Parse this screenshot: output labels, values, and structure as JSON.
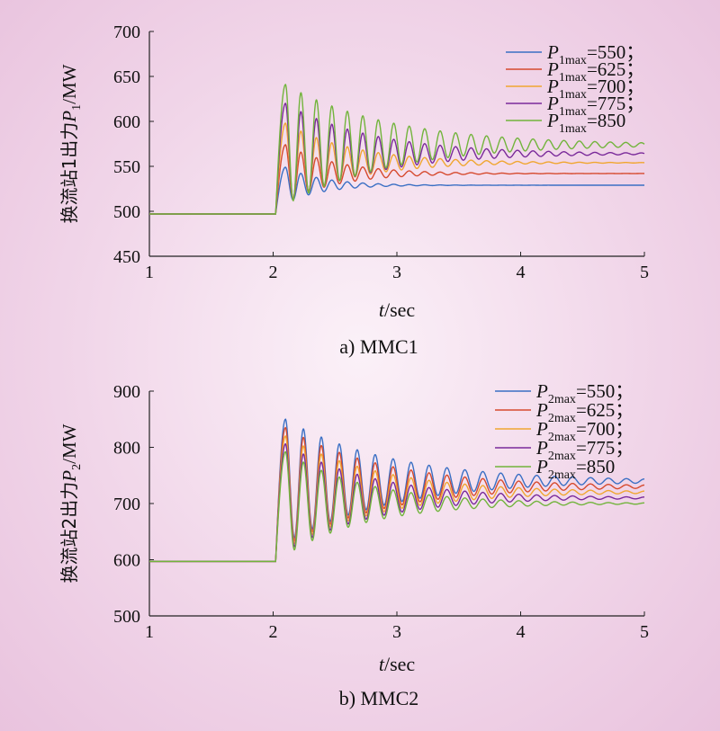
{
  "chart_data": [
    {
      "type": "line",
      "caption": "a) MMC1",
      "xlabel_var": "t",
      "xlabel_unit": "/sec",
      "ylabel_cjk": "换流站1出力",
      "ylabel_var": "P",
      "ylabel_sub": "1",
      "ylabel_unit": "/MW",
      "xlim": [
        1,
        5
      ],
      "ylim": [
        450,
        700
      ],
      "xticks": [
        "1",
        "2",
        "3",
        "4",
        "5"
      ],
      "yticks": [
        "450",
        "500",
        "550",
        "600",
        "650",
        "700"
      ],
      "legend_position": "top-right",
      "grid": false,
      "series": [
        {
          "name": "P1max=550；",
          "var": "P",
          "sub": "1max",
          "tail": "=550；",
          "color": "#3a6fc4",
          "initial": 497,
          "final": 529,
          "peak": 549,
          "dip": 515,
          "period": 0.125,
          "decay": 0.3
        },
        {
          "name": "P1max=625；",
          "var": "P",
          "sub": "1max",
          "tail": "=625；",
          "color": "#d64a2e",
          "initial": 497,
          "final": 542,
          "peak": 574,
          "dip": 520,
          "period": 0.125,
          "decay": 0.42
        },
        {
          "name": "P1max=700；",
          "var": "P",
          "sub": "1max",
          "tail": "=700；",
          "color": "#f0a630",
          "initial": 497,
          "final": 554,
          "peak": 598,
          "dip": 524,
          "period": 0.125,
          "decay": 0.55
        },
        {
          "name": "P1max=775；",
          "var": "P",
          "sub": "1max",
          "tail": "=775；",
          "color": "#7a2a9a",
          "initial": 497,
          "final": 564,
          "peak": 620,
          "dip": 528,
          "period": 0.125,
          "decay": 0.7
        },
        {
          "name": "P1max=850",
          "var": "P",
          "sub": "1max",
          "tail": "=850",
          "color": "#72b43c",
          "initial": 497,
          "final": 574,
          "peak": 641,
          "dip": 532,
          "period": 0.125,
          "decay": 0.85
        }
      ]
    },
    {
      "type": "line",
      "caption": "b) MMC2",
      "xlabel_var": "t",
      "xlabel_unit": "/sec",
      "ylabel_cjk": "换流站2出力",
      "ylabel_var": "P",
      "ylabel_sub": "2",
      "ylabel_unit": "/MW",
      "xlim": [
        1,
        5
      ],
      "ylim": [
        500,
        900
      ],
      "xticks": [
        "1",
        "2",
        "3",
        "4",
        "5"
      ],
      "yticks": [
        "500",
        "600",
        "700",
        "800",
        "900"
      ],
      "legend_position": "top-right",
      "grid": false,
      "series": [
        {
          "name": "P2max=550；",
          "var": "P",
          "sub": "2max",
          "tail": "=550；",
          "color": "#3a6fc4",
          "initial": 597,
          "final": 740,
          "peak": 850,
          "dip": 628,
          "period": 0.145,
          "decay": 0.85
        },
        {
          "name": "P2max=625；",
          "var": "P",
          "sub": "2max",
          "tail": "=625；",
          "color": "#d64a2e",
          "initial": 597,
          "final": 730,
          "peak": 835,
          "dip": 628,
          "period": 0.145,
          "decay": 0.8
        },
        {
          "name": "P2max=700；",
          "var": "P",
          "sub": "2max",
          "tail": "=700；",
          "color": "#f0a630",
          "initial": 597,
          "final": 720,
          "peak": 820,
          "dip": 628,
          "period": 0.145,
          "decay": 0.75
        },
        {
          "name": "P2max=775；",
          "var": "P",
          "sub": "2max",
          "tail": "=775；",
          "color": "#7a2a9a",
          "initial": 597,
          "final": 710,
          "peak": 806,
          "dip": 626,
          "period": 0.145,
          "decay": 0.7
        },
        {
          "name": "P2max=850",
          "var": "P",
          "sub": "2max",
          "tail": "=850",
          "color": "#72b43c",
          "initial": 597,
          "final": 700,
          "peak": 792,
          "dip": 622,
          "period": 0.145,
          "decay": 0.65
        }
      ]
    }
  ]
}
